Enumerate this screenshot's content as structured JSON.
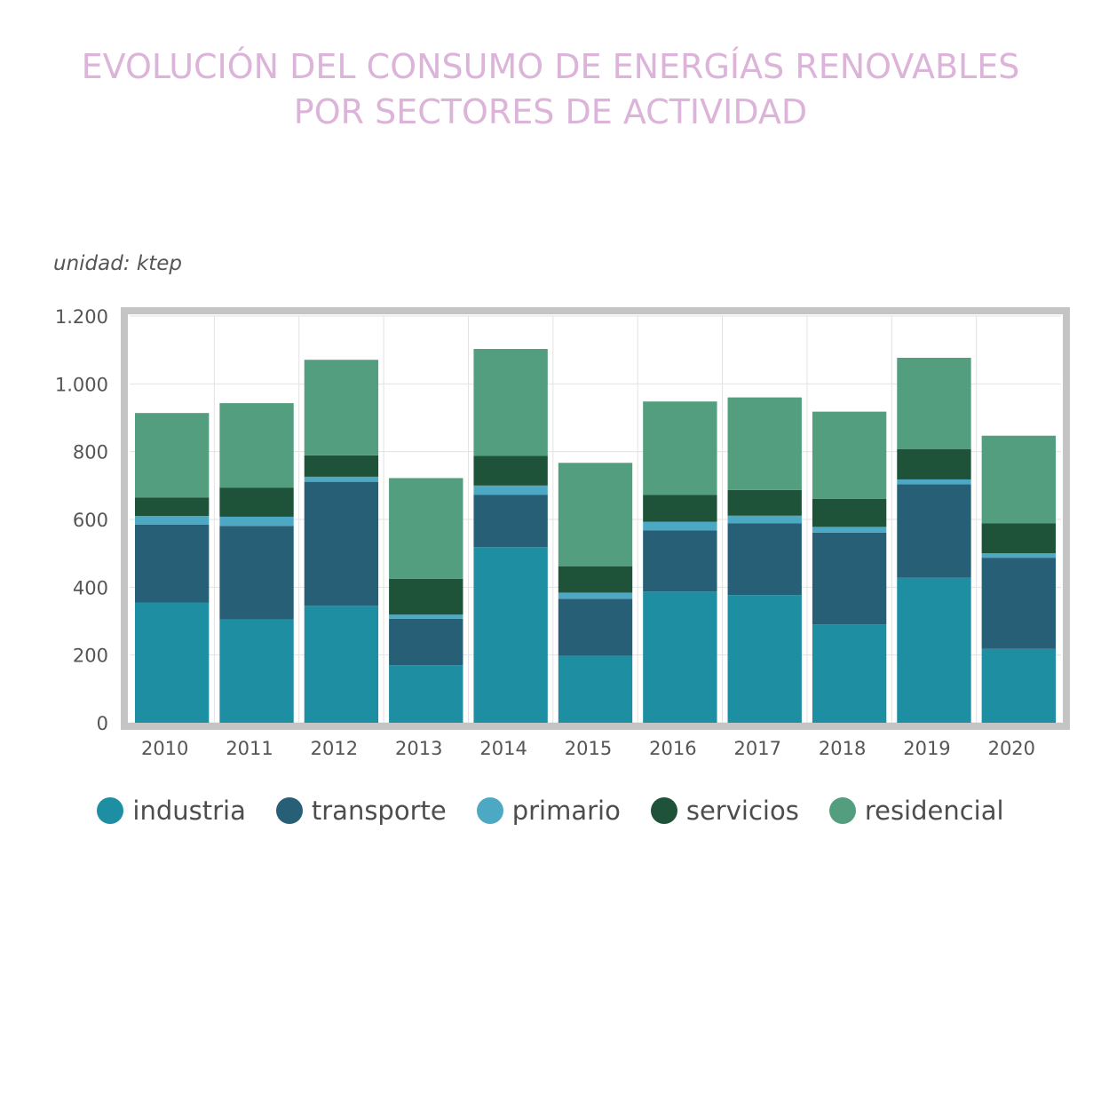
{
  "chart_data": {
    "type": "bar",
    "stacked": true,
    "title": [
      "EVOLUCIÓN DEL CONSUMO DE ENERGÍAS RENOVABLES",
      "POR SECTORES DE ACTIVIDAD"
    ],
    "unit_label": "unidad: ktep",
    "categories": [
      "2010",
      "2011",
      "2012",
      "2013",
      "2014",
      "2015",
      "2016",
      "2017",
      "2018",
      "2019",
      "2020"
    ],
    "ylim": [
      0,
      1200
    ],
    "yticks": [
      0,
      200,
      400,
      600,
      800,
      1000,
      1200
    ],
    "ytick_labels": [
      "0",
      "200",
      "400",
      "600",
      "800",
      "1.000",
      "1.200"
    ],
    "grid": true,
    "legend_position": "bottom",
    "series": [
      {
        "name": "industria",
        "color": "#1e8ea3",
        "values": [
          355,
          305,
          345,
          170,
          518,
          198,
          387,
          377,
          290,
          428,
          218
        ]
      },
      {
        "name": "transporte",
        "color": "#276076",
        "values": [
          230,
          276,
          366,
          137,
          155,
          168,
          181,
          212,
          271,
          276,
          269
        ]
      },
      {
        "name": "primario",
        "color": "#4da8c4",
        "values": [
          25,
          27,
          15,
          12,
          27,
          18,
          25,
          22,
          17,
          14,
          13
        ]
      },
      {
        "name": "servicios",
        "color": "#1e5339",
        "values": [
          55,
          86,
          63,
          106,
          88,
          78,
          79,
          76,
          83,
          89,
          89
        ]
      },
      {
        "name": "residencial",
        "color": "#539e7e",
        "values": [
          249,
          249,
          282,
          297,
          315,
          305,
          276,
          273,
          257,
          270,
          258
        ]
      }
    ]
  }
}
